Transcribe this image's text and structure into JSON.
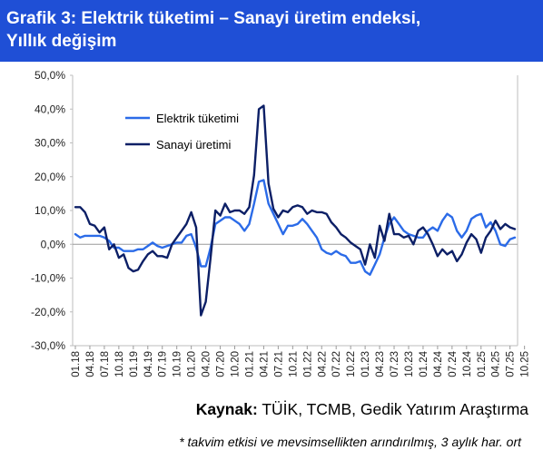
{
  "title": {
    "line1": "Grafik 3: Elektrik tüketimi – Sanayi üretim endeksi,",
    "line2": "Yıllık değişim"
  },
  "source": {
    "label": "Kaynak",
    "separator": ":",
    "text": " TÜİK, TCMB, Gedik Yatırım Araştırma"
  },
  "footnote": "* takvim etkisi ve mevsimsellikten arındırılmış, 3 aylık har. ort",
  "colors": {
    "title_bg": "#1f4fd6",
    "elektrik": "#2b6be8",
    "sanayi": "#0c1f66"
  },
  "chart_data": {
    "type": "line",
    "title": "Grafik 3: Elektrik tüketimi – Sanayi üretim endeksi, Yıllık değişim",
    "xlabel": "",
    "ylabel": "",
    "ylim": [
      -30,
      50
    ],
    "yticks": [
      "-30,0%",
      "-20,0%",
      "-10,0%",
      "0,0%",
      "10,0%",
      "20,0%",
      "30,0%",
      "40,0%",
      "50,0%"
    ],
    "grid": false,
    "legend": "upper-left",
    "x_tick_labels": [
      "01.18",
      "04.18",
      "07.18",
      "10.18",
      "01.19",
      "04.19",
      "07.19",
      "10.19",
      "01.20",
      "04.20",
      "07.20",
      "10.20",
      "01.21",
      "04.21",
      "07.21",
      "10.21",
      "01.22",
      "04.22",
      "07.22",
      "10.22",
      "01.23",
      "04.23",
      "07.23",
      "10.23",
      "01.24",
      "04.24",
      "07.24",
      "10.24",
      "01.25",
      "04.25",
      "07.25",
      "10.25"
    ],
    "series": [
      {
        "name": "Elektrik tüketimi",
        "color": "#2b6be8",
        "values": [
          3,
          2,
          2.5,
          2.5,
          2.5,
          2.5,
          2,
          1,
          -1,
          -1,
          -2,
          -2,
          -2,
          -1.5,
          -1.5,
          -0.5,
          0.5,
          -0.5,
          -1,
          -0.5,
          0,
          0.5,
          0.5,
          2.5,
          3,
          -1,
          -6.5,
          -6.5,
          -1,
          6,
          7,
          8,
          8,
          7,
          6,
          4,
          6,
          12,
          18.5,
          19,
          12,
          9,
          6,
          3,
          5.5,
          5.5,
          6,
          7.5,
          6,
          4,
          2,
          -1.5,
          -2.5,
          -3,
          -2,
          -3,
          -3.5,
          -5.5,
          -5.5,
          -5,
          -8,
          -9,
          -6,
          -3,
          2,
          6,
          8,
          6,
          4,
          3,
          2.5,
          2,
          2,
          4,
          5,
          4,
          7,
          9,
          8,
          4,
          2,
          4,
          7.5,
          8.5,
          9,
          5,
          6.5,
          4,
          0,
          -0.5,
          1.5,
          2
        ]
      },
      {
        "name": "Sanayi üretimi",
        "color": "#0c1f66",
        "values": [
          11,
          11,
          9.5,
          6,
          5.5,
          3.5,
          5,
          -1.5,
          0,
          -4,
          -3,
          -7,
          -8,
          -7.5,
          -5,
          -3,
          -2,
          -3.5,
          -3.5,
          -4,
          0,
          2,
          4,
          6,
          9.5,
          5,
          -21,
          -17,
          -4,
          10,
          8.5,
          12,
          9.5,
          10,
          10,
          9,
          11,
          20.5,
          40,
          41,
          18,
          10.5,
          8,
          10,
          9.5,
          11,
          11.5,
          11,
          9,
          10,
          9.5,
          9.5,
          9,
          6.5,
          5,
          3,
          2,
          0.5,
          -0.5,
          -1.5,
          -6,
          0,
          -4,
          5.5,
          1,
          9,
          3,
          3,
          2,
          2.5,
          0,
          4,
          5,
          3,
          0,
          -3.5,
          -1.5,
          -3,
          -2,
          -5,
          -3,
          0.5,
          3,
          1.5,
          -2.5,
          2,
          4,
          7,
          4.5,
          6,
          5,
          4.5
        ]
      }
    ]
  }
}
